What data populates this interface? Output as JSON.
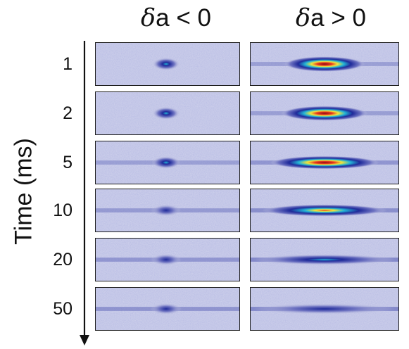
{
  "columns": [
    {
      "symbol": "δ",
      "rest": "a < 0"
    },
    {
      "symbol": "δ",
      "rest": "a > 0"
    }
  ],
  "axis_label": "Time (ms)",
  "rows": [
    {
      "time": "1",
      "left": {
        "peak": 0.42,
        "spread": 0.3
      },
      "right": {
        "peak": 1.0,
        "spread": 0.45
      }
    },
    {
      "time": "2",
      "left": {
        "peak": 0.38,
        "spread": 0.3
      },
      "right": {
        "peak": 0.95,
        "spread": 0.5
      }
    },
    {
      "time": "5",
      "left": {
        "peak": 0.34,
        "spread": 0.45
      },
      "right": {
        "peak": 0.88,
        "spread": 0.7
      }
    },
    {
      "time": "10",
      "left": {
        "peak": 0.28,
        "spread": 0.6
      },
      "right": {
        "peak": 0.72,
        "spread": 0.85
      }
    },
    {
      "time": "20",
      "left": {
        "peak": 0.22,
        "spread": 0.7
      },
      "right": {
        "peak": 0.4,
        "spread": 1.0
      }
    },
    {
      "time": "50",
      "left": {
        "peak": 0.2,
        "spread": 0.75
      },
      "right": {
        "peak": 0.25,
        "spread": 1.0
      }
    }
  ],
  "colormap": [
    "#c9cbe6",
    "#6f74c2",
    "#1f2a9a",
    "#22b3d6",
    "#f2e53a",
    "#e8371f",
    "#8a0a12"
  ]
}
